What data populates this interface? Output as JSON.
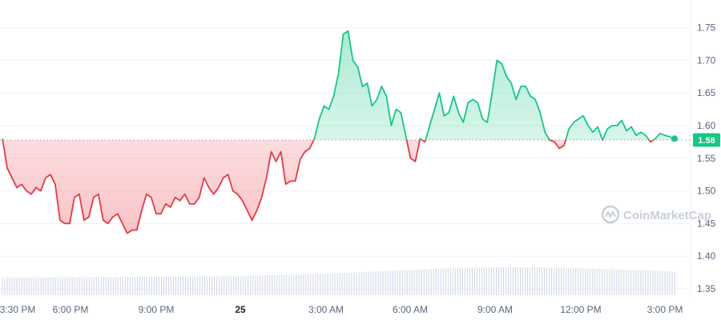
{
  "chart_data": {
    "type": "line",
    "baseline": 1.578,
    "current_label": "1.58",
    "ylim": [
      1.34,
      1.8
    ],
    "yticks": [
      "1.35",
      "1.40",
      "1.45",
      "1.50",
      "1.55",
      "1.60",
      "1.65",
      "1.70",
      "1.75"
    ],
    "xticks": [
      {
        "label": "3:30 PM",
        "bold": false
      },
      {
        "label": "6:00 PM",
        "bold": false
      },
      {
        "label": "9:00 PM",
        "bold": false
      },
      {
        "label": "25",
        "bold": true
      },
      {
        "label": "3:00 AM",
        "bold": false
      },
      {
        "label": "6:00 AM",
        "bold": false
      },
      {
        "label": "9:00 AM",
        "bold": false
      },
      {
        "label": "12:00 PM",
        "bold": false
      },
      {
        "label": "3:00 PM",
        "bold": false
      }
    ],
    "series": [
      {
        "values": [
          1.58,
          1.535,
          1.52,
          1.505,
          1.51,
          1.5,
          1.495,
          1.505,
          1.5,
          1.52,
          1.525,
          1.51,
          1.455,
          1.45,
          1.45,
          1.49,
          1.495,
          1.455,
          1.46,
          1.49,
          1.495,
          1.455,
          1.45,
          1.46,
          1.465,
          1.45,
          1.435,
          1.44,
          1.44,
          1.47,
          1.495,
          1.49,
          1.465,
          1.465,
          1.48,
          1.475,
          1.49,
          1.485,
          1.495,
          1.48,
          1.48,
          1.49,
          1.52,
          1.505,
          1.495,
          1.505,
          1.52,
          1.525,
          1.5,
          1.495,
          1.485,
          1.47,
          1.455,
          1.47,
          1.49,
          1.52,
          1.56,
          1.545,
          1.56,
          1.51,
          1.515,
          1.515,
          1.548,
          1.56,
          1.565,
          1.58,
          1.61,
          1.63,
          1.625,
          1.645,
          1.68,
          1.74,
          1.745,
          1.7,
          1.69,
          1.66,
          1.665,
          1.63,
          1.64,
          1.66,
          1.645,
          1.6,
          1.625,
          1.62,
          1.585,
          1.55,
          1.545,
          1.58,
          1.575,
          1.6,
          1.625,
          1.65,
          1.615,
          1.62,
          1.645,
          1.62,
          1.605,
          1.635,
          1.64,
          1.635,
          1.61,
          1.605,
          1.65,
          1.7,
          1.695,
          1.675,
          1.665,
          1.64,
          1.66,
          1.66,
          1.645,
          1.64,
          1.62,
          1.59,
          1.578,
          1.575,
          1.565,
          1.57,
          1.595,
          1.605,
          1.61,
          1.615,
          1.6,
          1.59,
          1.598,
          1.578,
          1.595,
          1.6,
          1.6,
          1.608,
          1.592,
          1.598,
          1.585,
          1.59,
          1.585,
          1.575,
          1.58,
          1.588,
          1.585,
          1.583,
          1.58
        ]
      }
    ],
    "colors": {
      "up": "#16c784",
      "down": "#ea3943",
      "volume": "#cfd6e4",
      "badge": "#16c784"
    },
    "watermark": "CoinMarketCap"
  }
}
